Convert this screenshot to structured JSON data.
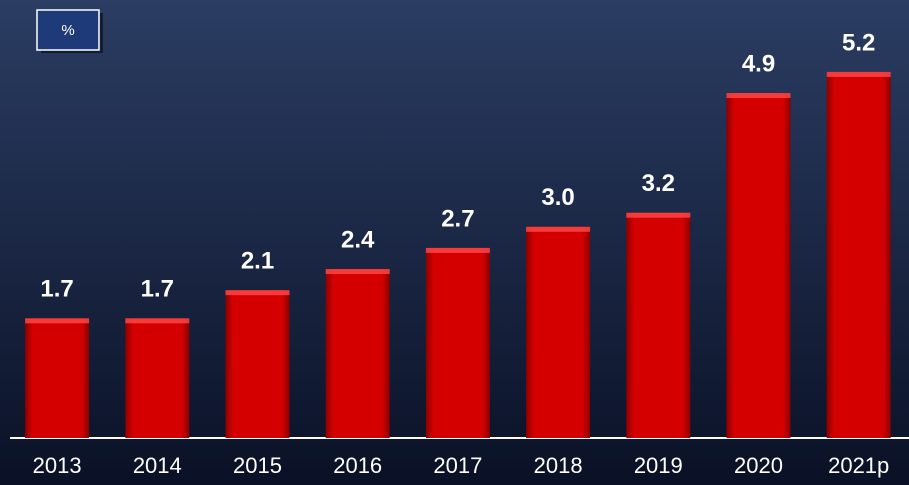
{
  "chart_data": {
    "type": "bar",
    "unit_label": "%",
    "categories": [
      "2013",
      "2014",
      "2015",
      "2016",
      "2017",
      "2018",
      "2019",
      "2020",
      "2021p"
    ],
    "values": [
      1.7,
      1.7,
      2.1,
      2.4,
      2.7,
      3.0,
      3.2,
      4.9,
      5.2
    ],
    "value_labels": [
      "1.7",
      "1.7",
      "2.1",
      "2.4",
      "2.7",
      "3.0",
      "3.2",
      "4.9",
      "5.2"
    ],
    "color": "#d40000",
    "ylim": [
      0,
      6
    ]
  }
}
